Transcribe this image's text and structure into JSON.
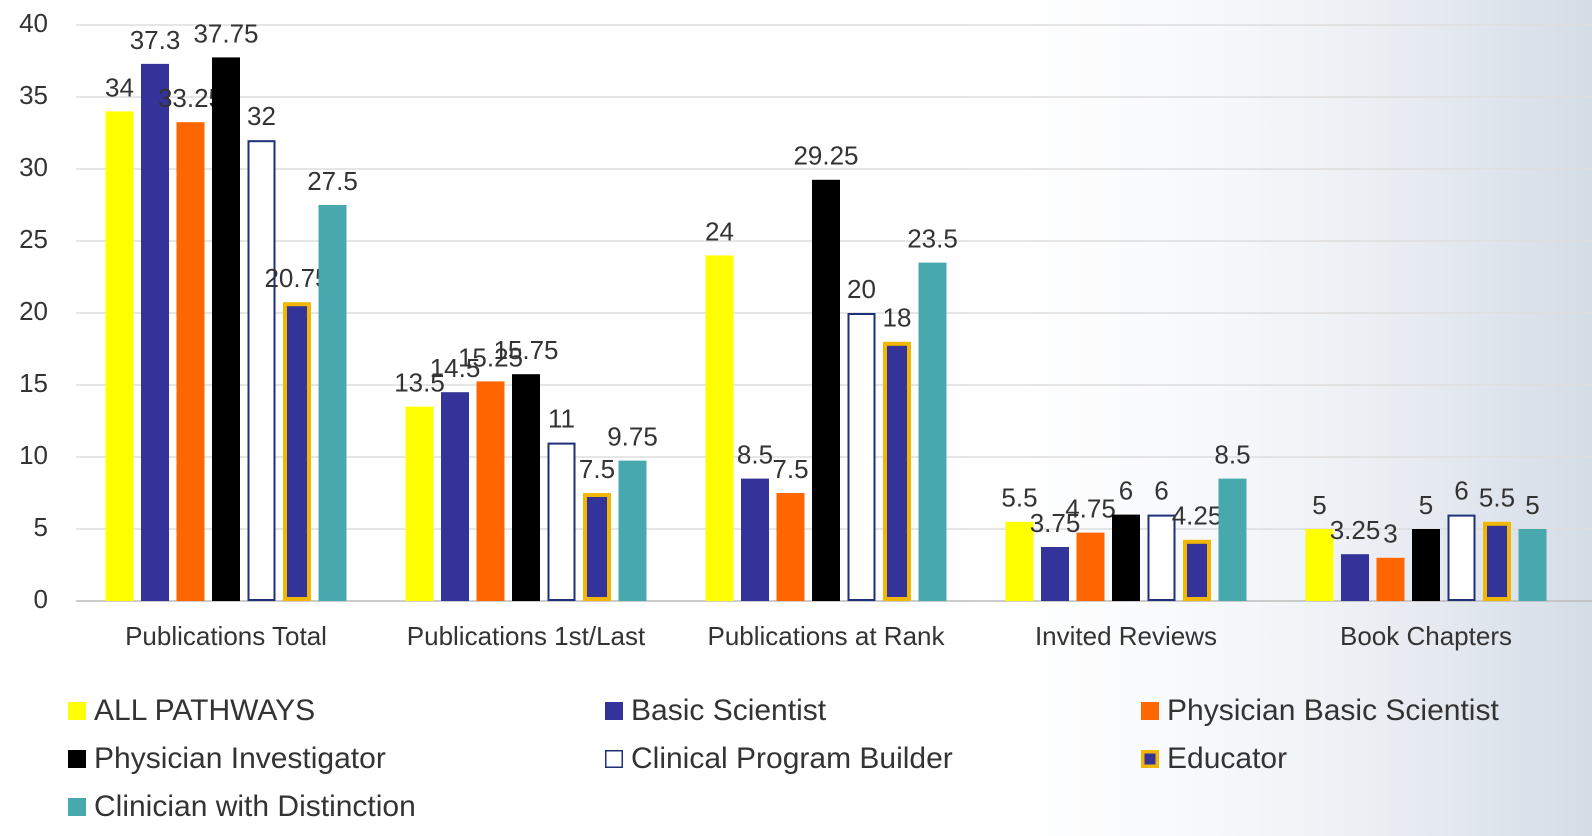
{
  "chart_data": {
    "type": "bar",
    "categories": [
      "Publications Total",
      "Publications 1st/Last",
      "Publications at Rank",
      "Invited Reviews",
      "Book Chapters"
    ],
    "series": [
      {
        "name": "ALL PATHWAYS",
        "color": "#ffff00",
        "values": [
          34,
          13.5,
          24,
          5.5,
          5
        ]
      },
      {
        "name": "Basic Scientist",
        "color": "#333399",
        "values": [
          37.3,
          14.5,
          8.5,
          3.75,
          3.25
        ]
      },
      {
        "name": "Physician Basic Scientist",
        "color": "#ff6600",
        "values": [
          33.25,
          15.25,
          7.5,
          4.75,
          3
        ]
      },
      {
        "name": "Physician Investigator",
        "color": "#000000",
        "values": [
          37.75,
          15.75,
          29.25,
          6,
          5
        ]
      },
      {
        "name": "Clinical Program Builder",
        "color": "#ffffff",
        "edgecolor": "#1f2f7a",
        "values": [
          32,
          11,
          20,
          6,
          6
        ]
      },
      {
        "name": "Educator",
        "color": "#333399",
        "edgecolor": "#f2b705",
        "values": [
          20.75,
          7.5,
          18,
          4.25,
          5.5
        ]
      },
      {
        "name": "Clinician with Distinction",
        "color": "#47a8ad",
        "values": [
          27.5,
          9.75,
          23.5,
          8.5,
          5
        ]
      }
    ],
    "ylim": [
      0,
      40
    ],
    "yticks": [
      0,
      5,
      10,
      15,
      20,
      25,
      30,
      35,
      40
    ],
    "grid": true,
    "legend": "bottom"
  }
}
